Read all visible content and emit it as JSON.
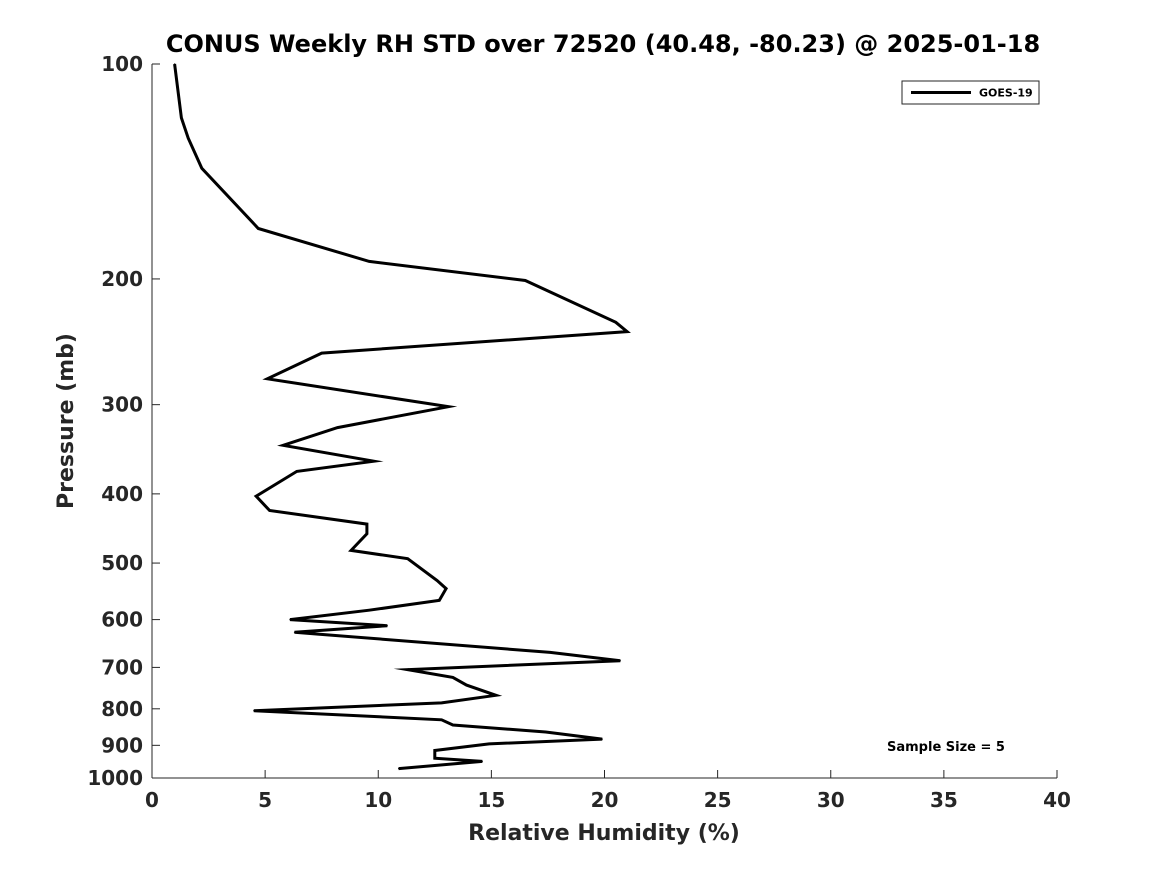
{
  "chart_data": {
    "type": "line",
    "title": "CONUS Weekly RH STD over 72520 (40.48, -80.23) @ 2025-01-18",
    "xlabel": "Relative Humidity (%)",
    "ylabel": "Pressure (mb)",
    "xlim": [
      0,
      40
    ],
    "ylim": [
      100,
      1000
    ],
    "yscale": "log",
    "yreversed": true,
    "grid": false,
    "legend_position": "top-right",
    "x_ticks": [
      "0",
      "5",
      "10",
      "15",
      "20",
      "25",
      "30",
      "35",
      "40"
    ],
    "y_ticks": [
      "100",
      "200",
      "300",
      "400",
      "500",
      "600",
      "700",
      "800",
      "900",
      "1000"
    ],
    "annotation": "Sample Size = 5",
    "series": [
      {
        "name": "GOES-19",
        "color": "#000000",
        "x": [
          1.0,
          1.3,
          1.6,
          2.2,
          4.7,
          9.6,
          16.5,
          20.5,
          21.0,
          7.5,
          5.1,
          13.1,
          8.2,
          5.8,
          9.8,
          6.4,
          4.6,
          5.2,
          9.5,
          9.5,
          8.8,
          11.3,
          12.6,
          13.0,
          12.7,
          9.6,
          6.1,
          10.4,
          6.3,
          17.6,
          20.7,
          11.3,
          13.3,
          13.9,
          15.2,
          12.8,
          4.5,
          12.8,
          13.3,
          17.4,
          19.9,
          14.9,
          12.5,
          12.5,
          14.6,
          10.9
        ],
        "y": [
          100,
          119,
          127,
          140,
          170,
          189,
          201,
          230,
          237,
          254,
          276,
          302,
          323,
          342,
          360,
          372,
          403,
          422,
          441,
          455,
          480,
          493,
          529,
          543,
          564,
          582,
          600,
          612,
          625,
          667,
          685,
          705,
          723,
          741,
          766,
          785,
          805,
          829,
          843,
          862,
          882,
          896,
          915,
          938,
          948,
          970
        ]
      }
    ]
  }
}
